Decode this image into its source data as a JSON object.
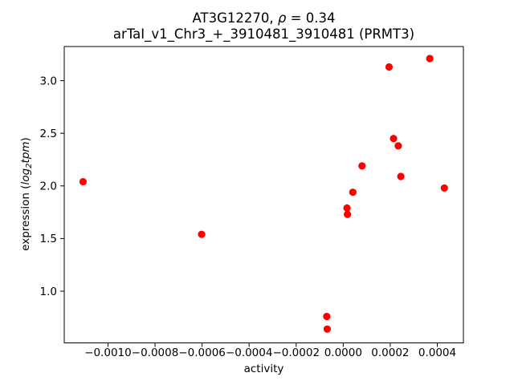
{
  "title": {
    "line1_prefix": "AT3G12270, ",
    "line1_rho": "ρ",
    "line1_suffix": " = 0.34",
    "line2": "arTaI_v1_Chr3_+_3910481_3910481 (PRMT3)"
  },
  "ylabel_parts": {
    "prefix": "expression (",
    "log": "log",
    "sub": "2",
    "tpm": "tpm",
    "close": ")"
  },
  "chart_data": {
    "type": "scatter",
    "title": "AT3G12270, ρ = 0.34",
    "subtitle": "arTaI_v1_Chr3_+_3910481_3910481 (PRMT3)",
    "xlabel": "activity",
    "ylabel": "expression (log2 tpm)",
    "legend": "none",
    "grid": false,
    "marker": {
      "shape": "circle",
      "color": "#ff0000",
      "radius_px": 4.6
    },
    "xlim": [
      -0.001186,
      0.000511
    ],
    "ylim": [
      0.509,
      3.324
    ],
    "xticks": [
      {
        "value": -0.001,
        "label": "−0.0010"
      },
      {
        "value": -0.0008,
        "label": "−0.0008"
      },
      {
        "value": -0.0006,
        "label": "−0.0006"
      },
      {
        "value": -0.0004,
        "label": "−0.0004"
      },
      {
        "value": -0.0002,
        "label": "−0.0002"
      },
      {
        "value": 0.0,
        "label": "0.0000"
      },
      {
        "value": 0.0002,
        "label": "0.0002"
      },
      {
        "value": 0.0004,
        "label": "0.0004"
      }
    ],
    "yticks": [
      {
        "value": 1.0,
        "label": "1.0"
      },
      {
        "value": 1.5,
        "label": "1.5"
      },
      {
        "value": 2.0,
        "label": "2.0"
      },
      {
        "value": 2.5,
        "label": "2.5"
      },
      {
        "value": 3.0,
        "label": "3.0"
      }
    ],
    "points": [
      [
        -0.001106,
        2.04
      ],
      [
        -0.000602,
        1.54
      ],
      [
        -7e-05,
        0.76
      ],
      [
        -6.8e-05,
        0.64
      ],
      [
        1.6e-05,
        1.79
      ],
      [
        1.8e-05,
        1.73
      ],
      [
        4.1e-05,
        1.94
      ],
      [
        8e-05,
        2.19
      ],
      [
        0.000195,
        3.13
      ],
      [
        0.000214,
        2.45
      ],
      [
        0.000234,
        2.38
      ],
      [
        0.000245,
        2.09
      ],
      [
        0.000368,
        3.21
      ],
      [
        0.00043,
        1.98
      ]
    ]
  }
}
